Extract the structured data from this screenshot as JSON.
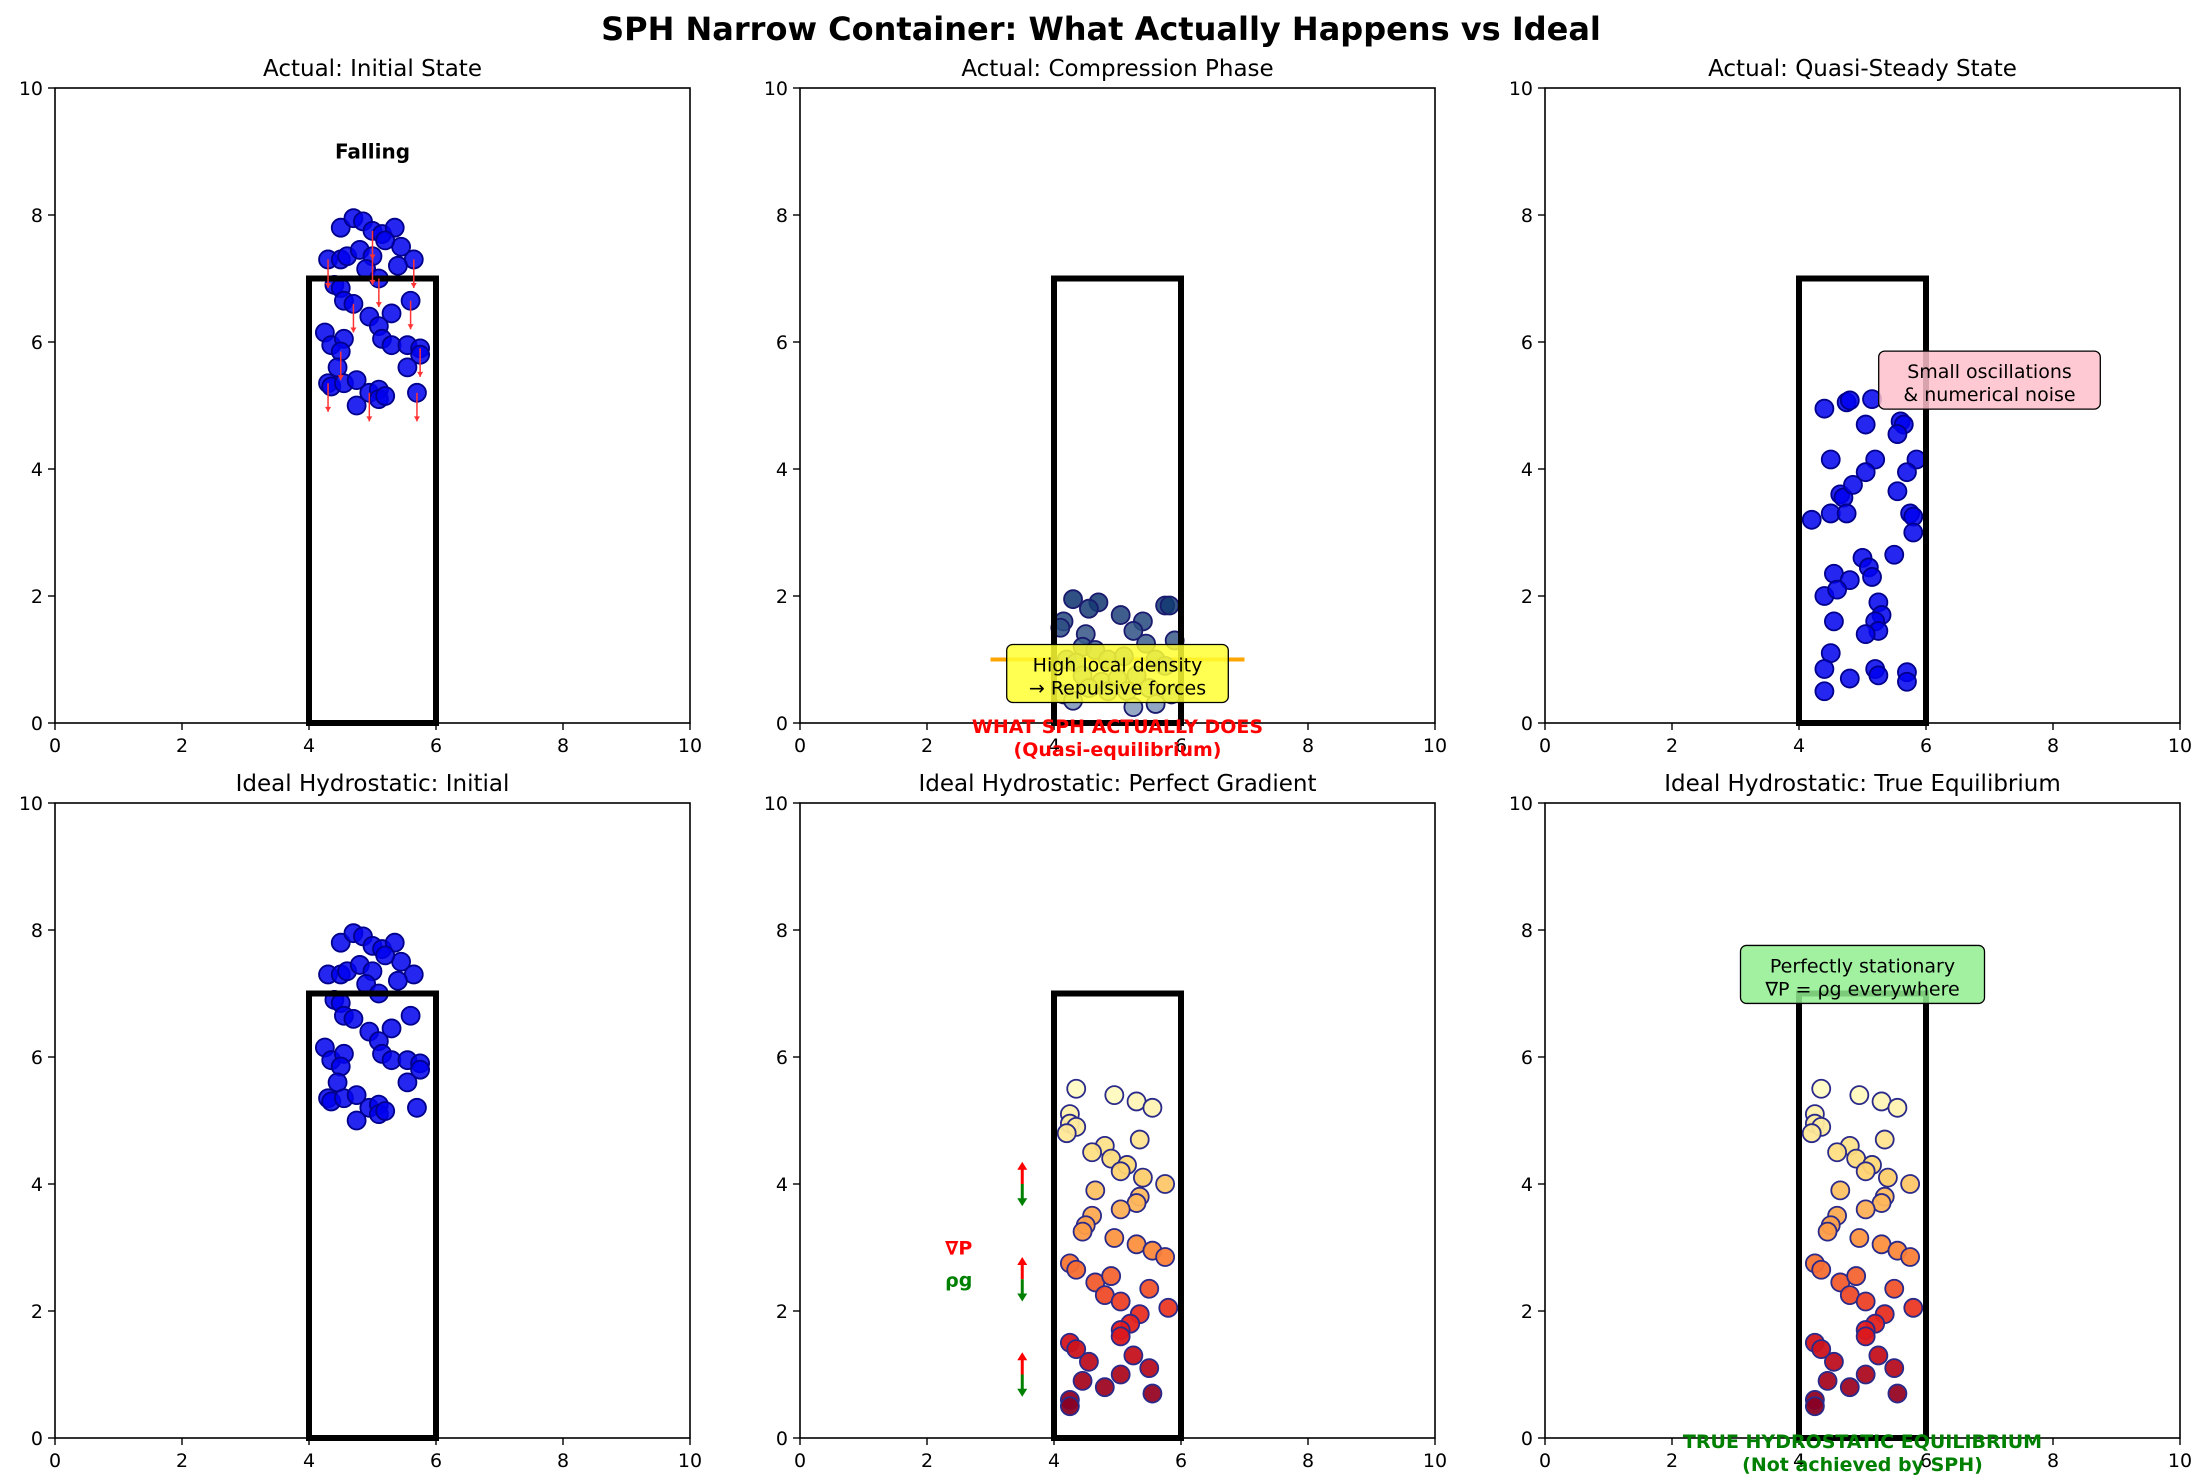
{
  "figure": {
    "title": "SPH Narrow Container: What Actually Happens vs Ideal"
  },
  "chart_data": [
    {
      "type": "scatter",
      "title": "Actual: Initial State",
      "xlim": [
        0,
        10
      ],
      "ylim": [
        0,
        10
      ],
      "xticks": [
        0,
        2,
        4,
        6,
        8,
        10
      ],
      "yticks": [
        0,
        2,
        4,
        6,
        8,
        10
      ],
      "grid": false,
      "container": {
        "x": [
          4,
          6
        ],
        "y": [
          0,
          7
        ]
      },
      "particle_color": "#0000ee",
      "annotations": [
        {
          "text": "Falling",
          "x": 5.0,
          "y": 9.0,
          "style": "bold"
        }
      ],
      "velocity_arrows": {
        "color": "#ff3333",
        "direction": "down"
      },
      "points": [
        [
          4.3,
          7.3
        ],
        [
          4.5,
          7.8
        ],
        [
          4.7,
          7.95
        ],
        [
          4.85,
          7.9
        ],
        [
          5.0,
          7.75
        ],
        [
          5.15,
          7.7
        ],
        [
          5.35,
          7.8
        ],
        [
          5.45,
          7.5
        ],
        [
          5.65,
          7.3
        ],
        [
          4.5,
          7.3
        ],
        [
          4.6,
          7.35
        ],
        [
          4.8,
          7.45
        ],
        [
          5.0,
          7.35
        ],
        [
          5.2,
          7.6
        ],
        [
          5.4,
          7.2
        ],
        [
          4.9,
          7.15
        ],
        [
          5.1,
          7.0
        ],
        [
          4.4,
          6.9
        ],
        [
          4.5,
          6.85
        ],
        [
          4.55,
          6.65
        ],
        [
          4.7,
          6.6
        ],
        [
          4.95,
          6.4
        ],
        [
          5.1,
          6.25
        ],
        [
          5.3,
          6.45
        ],
        [
          5.6,
          6.65
        ],
        [
          4.25,
          6.15
        ],
        [
          4.35,
          5.95
        ],
        [
          4.55,
          6.05
        ],
        [
          4.5,
          5.85
        ],
        [
          5.15,
          6.05
        ],
        [
          5.3,
          5.95
        ],
        [
          5.55,
          5.95
        ],
        [
          5.75,
          5.9
        ],
        [
          5.75,
          5.8
        ],
        [
          5.55,
          5.6
        ],
        [
          4.45,
          5.6
        ],
        [
          4.3,
          5.35
        ],
        [
          4.35,
          5.3
        ],
        [
          4.55,
          5.35
        ],
        [
          4.75,
          5.4
        ],
        [
          4.95,
          5.2
        ],
        [
          5.1,
          5.25
        ],
        [
          5.1,
          5.1
        ],
        [
          5.2,
          5.15
        ],
        [
          5.7,
          5.2
        ],
        [
          4.75,
          5.0
        ]
      ]
    },
    {
      "type": "scatter",
      "title": "Actual: Compression Phase",
      "xlim": [
        0,
        10
      ],
      "ylim": [
        0,
        10
      ],
      "xticks": [
        0,
        2,
        4,
        6,
        8,
        10
      ],
      "yticks": [
        0,
        2,
        4,
        6,
        8,
        10
      ],
      "grid": false,
      "container": {
        "x": [
          4,
          6
        ],
        "y": [
          0,
          7
        ]
      },
      "colormap": "Blues (dark = dense)",
      "density_line": {
        "y": 1.0,
        "x": [
          3.0,
          7.0
        ],
        "color": "#ffa500"
      },
      "callout": {
        "lines": [
          "High local density",
          "→ Repulsive forces"
        ],
        "x": 5.0,
        "y": 0.78,
        "fill": "#ffff33"
      },
      "footer": {
        "lines": [
          "WHAT SPH ACTUALLY DOES",
          "(Quasi-equilibrium)"
        ],
        "x": 5.0,
        "color": "#ff0000"
      },
      "points": [
        [
          4.3,
          1.95
        ],
        [
          4.7,
          1.9
        ],
        [
          4.55,
          1.8
        ],
        [
          5.05,
          1.7
        ],
        [
          5.4,
          1.6
        ],
        [
          5.75,
          1.85
        ],
        [
          5.82,
          1.85
        ],
        [
          4.15,
          1.6
        ],
        [
          4.1,
          1.5
        ],
        [
          4.5,
          1.4
        ],
        [
          5.25,
          1.45
        ],
        [
          4.45,
          1.2
        ],
        [
          4.65,
          1.15
        ],
        [
          5.45,
          1.25
        ],
        [
          5.9,
          1.3
        ],
        [
          4.2,
          1.0
        ],
        [
          4.35,
          0.95
        ],
        [
          4.85,
          1.0
        ],
        [
          5.1,
          1.05
        ],
        [
          5.6,
          1.0
        ],
        [
          5.75,
          0.9
        ],
        [
          4.45,
          0.75
        ],
        [
          4.75,
          0.65
        ],
        [
          5.0,
          0.7
        ],
        [
          5.3,
          0.75
        ],
        [
          4.15,
          0.45
        ],
        [
          4.3,
          0.35
        ],
        [
          4.55,
          0.55
        ],
        [
          4.85,
          0.5
        ],
        [
          5.15,
          0.5
        ],
        [
          5.5,
          0.55
        ],
        [
          5.85,
          0.45
        ],
        [
          5.6,
          0.3
        ],
        [
          5.25,
          0.25
        ]
      ]
    },
    {
      "type": "scatter",
      "title": "Actual: Quasi-Steady State",
      "xlim": [
        0,
        10
      ],
      "ylim": [
        0,
        10
      ],
      "xticks": [
        0,
        2,
        4,
        6,
        8,
        10
      ],
      "yticks": [
        0,
        2,
        4,
        6,
        8,
        10
      ],
      "grid": false,
      "container": {
        "x": [
          4,
          6
        ],
        "y": [
          0,
          7
        ]
      },
      "particle_color": "#0000ee",
      "callout": {
        "lines": [
          "Small oscillations",
          "& numerical noise"
        ],
        "x": 7.0,
        "y": 5.4,
        "fill": "#ffc0cb"
      },
      "points": [
        [
          4.4,
          4.95
        ],
        [
          4.75,
          5.05
        ],
        [
          4.8,
          5.08
        ],
        [
          5.15,
          5.1
        ],
        [
          5.05,
          4.7
        ],
        [
          5.6,
          4.75
        ],
        [
          5.65,
          4.7
        ],
        [
          5.55,
          4.55
        ],
        [
          5.85,
          4.15
        ],
        [
          5.7,
          3.95
        ],
        [
          5.55,
          3.65
        ],
        [
          5.75,
          3.3
        ],
        [
          5.8,
          3.25
        ],
        [
          5.8,
          3.0
        ],
        [
          4.5,
          4.15
        ],
        [
          5.2,
          4.15
        ],
        [
          5.05,
          3.95
        ],
        [
          4.65,
          3.6
        ],
        [
          4.7,
          3.55
        ],
        [
          4.85,
          3.75
        ],
        [
          4.5,
          3.3
        ],
        [
          4.75,
          3.3
        ],
        [
          4.2,
          3.2
        ],
        [
          5.5,
          2.65
        ],
        [
          5.0,
          2.6
        ],
        [
          5.1,
          2.45
        ],
        [
          5.15,
          2.3
        ],
        [
          4.55,
          2.35
        ],
        [
          4.8,
          2.25
        ],
        [
          4.4,
          2.0
        ],
        [
          4.6,
          2.1
        ],
        [
          5.25,
          1.9
        ],
        [
          5.3,
          1.7
        ],
        [
          5.2,
          1.6
        ],
        [
          4.55,
          1.6
        ],
        [
          5.25,
          1.45
        ],
        [
          5.05,
          1.4
        ],
        [
          4.5,
          1.1
        ],
        [
          4.4,
          0.85
        ],
        [
          5.2,
          0.85
        ],
        [
          5.25,
          0.75
        ],
        [
          4.8,
          0.7
        ],
        [
          5.7,
          0.8
        ],
        [
          5.7,
          0.65
        ],
        [
          4.4,
          0.5
        ]
      ]
    },
    {
      "type": "scatter",
      "title": "Ideal Hydrostatic: Initial",
      "xlim": [
        0,
        10
      ],
      "ylim": [
        0,
        10
      ],
      "xticks": [
        0,
        2,
        4,
        6,
        8,
        10
      ],
      "yticks": [
        0,
        2,
        4,
        6,
        8,
        10
      ],
      "grid": false,
      "container": {
        "x": [
          4,
          6
        ],
        "y": [
          0,
          7
        ]
      },
      "particle_color": "#0000ee",
      "points": [
        [
          4.3,
          7.3
        ],
        [
          4.5,
          7.8
        ],
        [
          4.7,
          7.95
        ],
        [
          4.85,
          7.9
        ],
        [
          5.0,
          7.75
        ],
        [
          5.15,
          7.7
        ],
        [
          5.35,
          7.8
        ],
        [
          5.45,
          7.5
        ],
        [
          5.65,
          7.3
        ],
        [
          4.5,
          7.3
        ],
        [
          4.6,
          7.35
        ],
        [
          4.8,
          7.45
        ],
        [
          5.0,
          7.35
        ],
        [
          5.2,
          7.6
        ],
        [
          5.4,
          7.2
        ],
        [
          4.9,
          7.15
        ],
        [
          5.1,
          7.0
        ],
        [
          4.4,
          6.9
        ],
        [
          4.5,
          6.85
        ],
        [
          4.55,
          6.65
        ],
        [
          4.7,
          6.6
        ],
        [
          4.95,
          6.4
        ],
        [
          5.1,
          6.25
        ],
        [
          5.3,
          6.45
        ],
        [
          5.6,
          6.65
        ],
        [
          4.25,
          6.15
        ],
        [
          4.35,
          5.95
        ],
        [
          4.55,
          6.05
        ],
        [
          4.5,
          5.85
        ],
        [
          5.15,
          6.05
        ],
        [
          5.3,
          5.95
        ],
        [
          5.55,
          5.95
        ],
        [
          5.75,
          5.9
        ],
        [
          5.75,
          5.8
        ],
        [
          5.55,
          5.6
        ],
        [
          4.45,
          5.6
        ],
        [
          4.3,
          5.35
        ],
        [
          4.35,
          5.3
        ],
        [
          4.55,
          5.35
        ],
        [
          4.75,
          5.4
        ],
        [
          4.95,
          5.2
        ],
        [
          5.1,
          5.25
        ],
        [
          5.1,
          5.1
        ],
        [
          5.2,
          5.15
        ],
        [
          5.7,
          5.2
        ],
        [
          4.75,
          5.0
        ]
      ]
    },
    {
      "type": "scatter",
      "title": "Ideal Hydrostatic: Perfect Gradient",
      "xlim": [
        0,
        10
      ],
      "ylim": [
        0,
        10
      ],
      "xticks": [
        0,
        2,
        4,
        6,
        8,
        10
      ],
      "yticks": [
        0,
        2,
        4,
        6,
        8,
        10
      ],
      "grid": false,
      "container": {
        "x": [
          4,
          6
        ],
        "y": [
          0,
          7
        ]
      },
      "colormap": "YlOrRd (dark red = high pressure)",
      "force_arrows": {
        "x": 3.5,
        "centers": [
          4.0,
          2.5,
          1.0
        ],
        "up_color": "#ff0000",
        "down_color": "#008000"
      },
      "legend_labels": [
        {
          "text": "∇P",
          "x": 2.5,
          "y": 3.0,
          "color": "#ff0000"
        },
        {
          "text": "ρg",
          "x": 2.5,
          "y": 2.5,
          "color": "#008000"
        }
      ],
      "points": [
        [
          4.35,
          5.5
        ],
        [
          4.95,
          5.4
        ],
        [
          5.3,
          5.3
        ],
        [
          5.55,
          5.2
        ],
        [
          4.25,
          5.1
        ],
        [
          4.25,
          4.95
        ],
        [
          4.35,
          4.9
        ],
        [
          4.2,
          4.8
        ],
        [
          5.35,
          4.7
        ],
        [
          4.8,
          4.6
        ],
        [
          4.9,
          4.4
        ],
        [
          5.15,
          4.3
        ],
        [
          5.05,
          4.2
        ],
        [
          4.6,
          4.5
        ],
        [
          5.4,
          4.1
        ],
        [
          4.65,
          3.9
        ],
        [
          5.75,
          4.0
        ],
        [
          5.35,
          3.8
        ],
        [
          5.3,
          3.7
        ],
        [
          4.6,
          3.5
        ],
        [
          4.5,
          3.35
        ],
        [
          4.45,
          3.25
        ],
        [
          5.05,
          3.6
        ],
        [
          5.3,
          3.05
        ],
        [
          5.55,
          2.95
        ],
        [
          5.75,
          2.85
        ],
        [
          4.95,
          3.15
        ],
        [
          4.25,
          2.75
        ],
        [
          4.35,
          2.65
        ],
        [
          4.65,
          2.45
        ],
        [
          4.9,
          2.55
        ],
        [
          4.8,
          2.25
        ],
        [
          5.05,
          2.15
        ],
        [
          5.5,
          2.35
        ],
        [
          5.8,
          2.05
        ],
        [
          5.35,
          1.95
        ],
        [
          5.2,
          1.8
        ],
        [
          5.05,
          1.7
        ],
        [
          5.05,
          1.6
        ],
        [
          4.25,
          1.5
        ],
        [
          4.35,
          1.4
        ],
        [
          4.55,
          1.2
        ],
        [
          5.25,
          1.3
        ],
        [
          5.5,
          1.1
        ],
        [
          5.05,
          1.0
        ],
        [
          4.45,
          0.9
        ],
        [
          4.8,
          0.8
        ],
        [
          5.55,
          0.7
        ],
        [
          4.25,
          0.6
        ],
        [
          4.25,
          0.5
        ]
      ]
    },
    {
      "type": "scatter",
      "title": "Ideal Hydrostatic: True Equilibrium",
      "xlim": [
        0,
        10
      ],
      "ylim": [
        0,
        10
      ],
      "xticks": [
        0,
        2,
        4,
        6,
        8,
        10
      ],
      "yticks": [
        0,
        2,
        4,
        6,
        8,
        10
      ],
      "grid": false,
      "container": {
        "x": [
          4,
          6
        ],
        "y": [
          0,
          7
        ]
      },
      "colormap": "YlOrRd (dark red = high pressure)",
      "callout": {
        "lines": [
          "Perfectly stationary",
          "∇P = ρg everywhere"
        ],
        "x": 5.0,
        "y": 7.3,
        "fill": "#90ee90"
      },
      "footer": {
        "lines": [
          "TRUE HYDROSTATIC EQUILIBRIUM",
          "(Not achieved by SPH)"
        ],
        "x": 5.0,
        "color": "#008000"
      },
      "points": [
        [
          4.35,
          5.5
        ],
        [
          4.95,
          5.4
        ],
        [
          5.3,
          5.3
        ],
        [
          5.55,
          5.2
        ],
        [
          4.25,
          5.1
        ],
        [
          4.25,
          4.95
        ],
        [
          4.35,
          4.9
        ],
        [
          4.2,
          4.8
        ],
        [
          5.35,
          4.7
        ],
        [
          4.8,
          4.6
        ],
        [
          4.9,
          4.4
        ],
        [
          5.15,
          4.3
        ],
        [
          5.05,
          4.2
        ],
        [
          4.6,
          4.5
        ],
        [
          5.4,
          4.1
        ],
        [
          4.65,
          3.9
        ],
        [
          5.75,
          4.0
        ],
        [
          5.35,
          3.8
        ],
        [
          5.3,
          3.7
        ],
        [
          4.6,
          3.5
        ],
        [
          4.5,
          3.35
        ],
        [
          4.45,
          3.25
        ],
        [
          5.05,
          3.6
        ],
        [
          5.3,
          3.05
        ],
        [
          5.55,
          2.95
        ],
        [
          5.75,
          2.85
        ],
        [
          4.95,
          3.15
        ],
        [
          4.25,
          2.75
        ],
        [
          4.35,
          2.65
        ],
        [
          4.65,
          2.45
        ],
        [
          4.9,
          2.55
        ],
        [
          4.8,
          2.25
        ],
        [
          5.05,
          2.15
        ],
        [
          5.5,
          2.35
        ],
        [
          5.8,
          2.05
        ],
        [
          5.35,
          1.95
        ],
        [
          5.2,
          1.8
        ],
        [
          5.05,
          1.7
        ],
        [
          5.05,
          1.6
        ],
        [
          4.25,
          1.5
        ],
        [
          4.35,
          1.4
        ],
        [
          4.55,
          1.2
        ],
        [
          5.25,
          1.3
        ],
        [
          5.5,
          1.1
        ],
        [
          5.05,
          1.0
        ],
        [
          4.45,
          0.9
        ],
        [
          4.8,
          0.8
        ],
        [
          5.55,
          0.7
        ],
        [
          4.25,
          0.6
        ],
        [
          4.25,
          0.5
        ]
      ]
    }
  ]
}
